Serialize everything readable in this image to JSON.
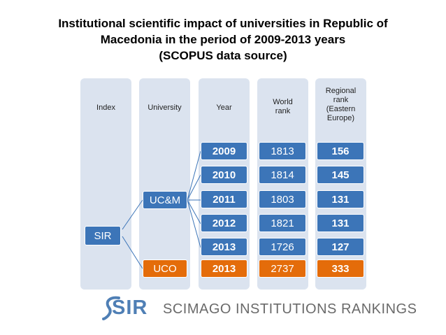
{
  "title": {
    "line1": "Institutional scientific impact of universities in Republic of",
    "line2": "Macedonia in the period of 2009-2013 years",
    "line3": "(SCOPUS data source)"
  },
  "headers": {
    "index": "Index",
    "university": "University",
    "year": "Year",
    "world_rank": [
      "World",
      "rank"
    ],
    "regional_rank": [
      "Regional",
      "rank",
      "(Eastern",
      "Europe)"
    ]
  },
  "index_label": "SIR",
  "universities": [
    "UC&M",
    "UCO"
  ],
  "rows": [
    {
      "year": "2009",
      "world": "1813",
      "regional": "156"
    },
    {
      "year": "2010",
      "world": "1814",
      "regional": "145"
    },
    {
      "year": "2011",
      "world": "1803",
      "regional": "131"
    },
    {
      "year": "2012",
      "world": "1821",
      "regional": "131"
    },
    {
      "year": "2013",
      "world": "1726",
      "regional": "127"
    },
    {
      "year": "2013",
      "world": "2737",
      "regional": "333"
    }
  ],
  "logo": {
    "mark": "SIR",
    "name": "SCIMAGO INSTITUTIONS RANKINGS"
  },
  "colors": {
    "blue": "#3c75b8",
    "orange": "#e46c0a",
    "column_bg": "#dbe3ef"
  }
}
